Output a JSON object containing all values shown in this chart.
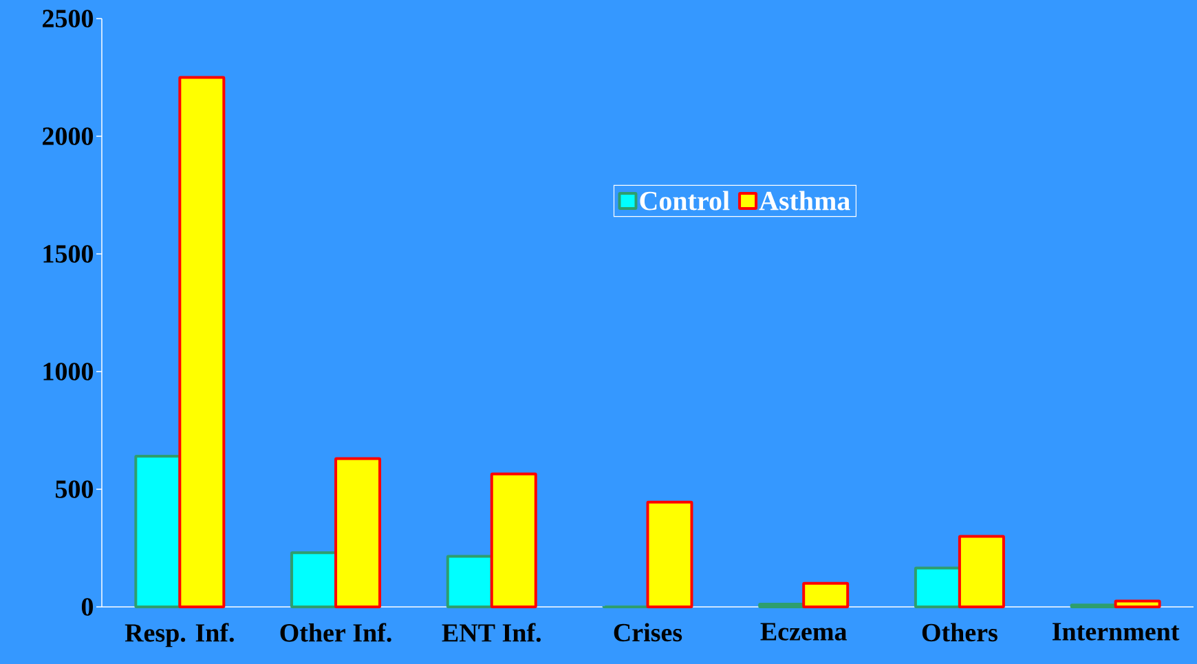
{
  "chart_data": {
    "type": "bar",
    "categories": [
      "Resp. Inf.",
      "Other Inf.",
      "ENT Inf.",
      "Crises",
      "Eczema",
      "Others",
      "Internment"
    ],
    "series": [
      {
        "name": "Control",
        "color": "#00ffff",
        "values": [
          640,
          230,
          215,
          0,
          12,
          165,
          8
        ]
      },
      {
        "name": "Asthma",
        "color": "#ffff00",
        "values": [
          2250,
          630,
          565,
          445,
          100,
          300,
          25
        ]
      }
    ],
    "ylim": [
      0,
      2500
    ],
    "yticks": [
      0,
      500,
      1000,
      1500,
      2000,
      2500
    ],
    "legend": "top"
  }
}
